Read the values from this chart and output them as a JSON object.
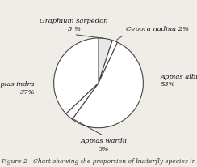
{
  "labels": [
    "Graphium sarpedon",
    "Cepora nadina",
    "Appias albina",
    "Appias wardii",
    "Appias indra"
  ],
  "values": [
    5,
    2,
    53,
    3,
    37
  ],
  "colors": [
    "#e8e8e8",
    "#ffffff",
    "#ffffff",
    "#ffffff",
    "#ffffff"
  ],
  "edge_color": "#444444",
  "bg_color": "#f0ede8",
  "title": "Figure 2   Chart showing the proportion of butterfly species in",
  "title_fontsize": 5.5,
  "label_fontsize": 6.0,
  "startangle": 90
}
